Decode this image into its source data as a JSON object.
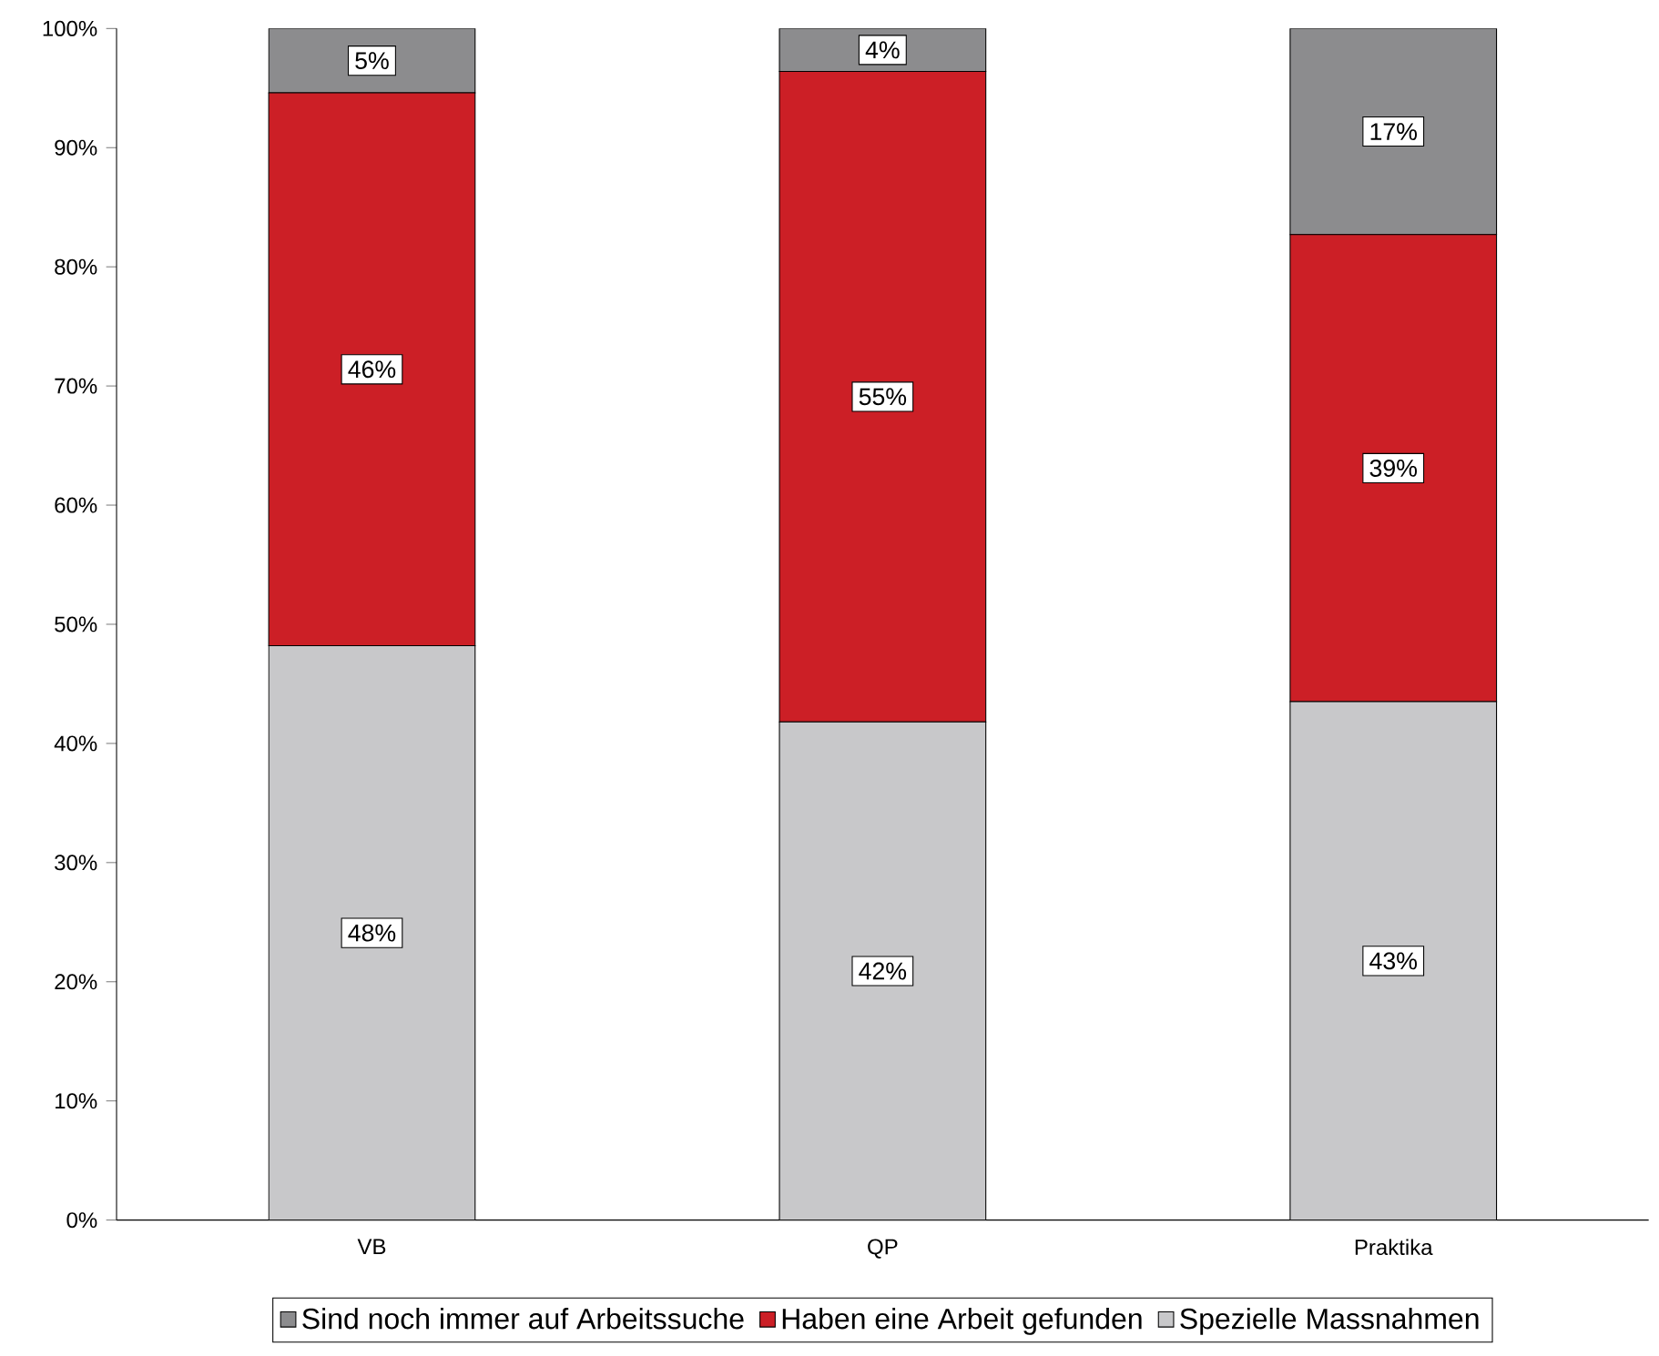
{
  "chart_data": {
    "type": "bar",
    "stacked": true,
    "categories": [
      "VB",
      "QP",
      "Praktika"
    ],
    "series": [
      {
        "name": "Spezielle Massnahmen",
        "color": "#c8c8ca",
        "values": [
          48.2,
          41.8,
          43.5
        ],
        "value_labels": [
          "48%",
          "42%",
          "43%"
        ]
      },
      {
        "name": "Haben eine Arbeit gefunden",
        "color": "#cc1f26",
        "values": [
          46.4,
          54.6,
          39.2
        ],
        "value_labels": [
          "46%",
          "55%",
          "39%"
        ]
      },
      {
        "name": "Sind noch immer auf Arbeitssuche",
        "color": "#8c8c8e",
        "values": [
          5.4,
          3.6,
          17.3
        ],
        "value_labels": [
          "5%",
          "4%",
          "17%"
        ]
      }
    ],
    "ylim": [
      0,
      100
    ],
    "yticks": [
      {
        "value": 0,
        "label": "0%"
      },
      {
        "value": 10,
        "label": "10%"
      },
      {
        "value": 20,
        "label": "20%"
      },
      {
        "value": 30,
        "label": "30%"
      },
      {
        "value": 40,
        "label": "40%"
      },
      {
        "value": 50,
        "label": "50%"
      },
      {
        "value": 60,
        "label": "60%"
      },
      {
        "value": 70,
        "label": "70%"
      },
      {
        "value": 80,
        "label": "80%"
      },
      {
        "value": 90,
        "label": "90%"
      },
      {
        "value": 100,
        "label": "100%"
      }
    ],
    "legend": "bottom",
    "grid": false
  }
}
